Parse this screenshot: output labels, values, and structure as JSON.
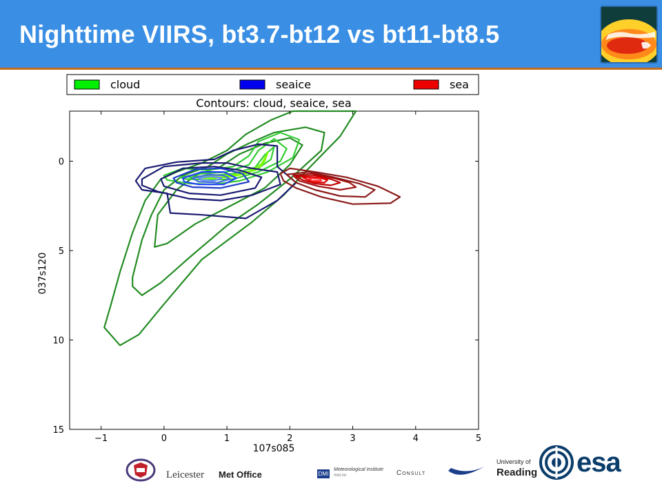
{
  "slide": {
    "title": "Nighttime VIIRS, bt3.7-bt12 vs bt11-bt8.5"
  },
  "colors": {
    "header_bg": "#3a8fe4",
    "header_border": "#c46a1e",
    "cloud": "#00ee00",
    "seaice": "#0000ee",
    "sea": "#ee0000"
  },
  "icons": {
    "header_logo": "globe-sst-map-icon",
    "esa_logo": "esa-swirl-icon",
    "edinburgh_logo": "university-crest-icon"
  },
  "chart_data": {
    "type": "contour",
    "title": "Contours: cloud, seaice, sea",
    "xlabel": "107s085",
    "ylabel": "037s120",
    "xlim": [
      -1.5,
      5
    ],
    "ylim": [
      15,
      -2.8
    ],
    "y_inverted": true,
    "grid": false,
    "legend_position": "top, outside",
    "xticks": [
      -1,
      0,
      1,
      2,
      3,
      4,
      5
    ],
    "xtick_labels": [
      "−1",
      "0",
      "1",
      "2",
      "3",
      "4",
      "5"
    ],
    "yticks": [
      0,
      5,
      10,
      15
    ],
    "ytick_labels": [
      "0",
      "5",
      "10",
      "15"
    ],
    "series": [
      {
        "name": "cloud",
        "legend_color": "#00ee00",
        "contours": [
          {
            "color": "#228b22",
            "points": [
              [
                -0.85,
                8.1
              ],
              [
                -0.7,
                6.2
              ],
              [
                -0.5,
                4.0
              ],
              [
                -0.3,
                2.2
              ],
              [
                -0.05,
                1.0
              ],
              [
                0.2,
                0.6
              ],
              [
                0.6,
                0.1
              ],
              [
                1.0,
                -0.6
              ],
              [
                1.3,
                -1.5
              ],
              [
                1.7,
                -2.3
              ],
              [
                2.05,
                -2.8
              ],
              [
                3.05,
                -2.8
              ],
              [
                2.8,
                -1.4
              ],
              [
                2.3,
                0.4
              ],
              [
                1.9,
                1.9
              ],
              [
                1.4,
                3.4
              ],
              [
                0.6,
                5.5
              ],
              [
                -0.05,
                8.2
              ],
              [
                -0.4,
                9.7
              ],
              [
                -0.7,
                10.3
              ],
              [
                -0.95,
                9.3
              ]
            ]
          },
          {
            "color": "#228b22",
            "points": [
              [
                -0.5,
                6.5
              ],
              [
                -0.35,
                4.4
              ],
              [
                -0.2,
                3.0
              ],
              [
                0.0,
                1.6
              ],
              [
                0.3,
                0.8
              ],
              [
                0.7,
                0.3
              ],
              [
                1.0,
                -0.4
              ],
              [
                1.35,
                -1.0
              ],
              [
                1.75,
                -1.6
              ],
              [
                2.25,
                -1.9
              ],
              [
                2.55,
                -1.6
              ],
              [
                2.5,
                -0.6
              ],
              [
                2.0,
                1.0
              ],
              [
                1.5,
                2.4
              ],
              [
                1.0,
                3.6
              ],
              [
                0.4,
                5.4
              ],
              [
                -0.05,
                6.8
              ],
              [
                -0.35,
                7.5
              ],
              [
                -0.5,
                7.0
              ]
            ]
          },
          {
            "color": "#228b22",
            "points": [
              [
                -0.15,
                4.8
              ],
              [
                -0.1,
                3.0
              ],
              [
                0.2,
                1.6
              ],
              [
                0.5,
                0.8
              ],
              [
                0.9,
                0.3
              ],
              [
                1.2,
                -0.4
              ],
              [
                1.6,
                -1.0
              ],
              [
                2.0,
                -1.3
              ],
              [
                2.2,
                -0.9
              ],
              [
                2.0,
                0.2
              ],
              [
                1.6,
                1.5
              ],
              [
                1.0,
                2.6
              ],
              [
                0.5,
                3.5
              ],
              [
                0.05,
                4.6
              ]
            ]
          },
          {
            "color": "#32cd32",
            "points": [
              [
                0.0,
                0.8
              ],
              [
                0.3,
                0.4
              ],
              [
                0.7,
                0.5
              ],
              [
                1.1,
                0.3
              ],
              [
                1.35,
                -0.3
              ],
              [
                1.5,
                -1.1
              ],
              [
                1.85,
                -1.6
              ],
              [
                2.15,
                -1.2
              ],
              [
                2.05,
                -0.2
              ],
              [
                1.65,
                0.6
              ],
              [
                1.2,
                1.1
              ],
              [
                0.8,
                1.3
              ],
              [
                0.4,
                1.25
              ],
              [
                0.05,
                1.05
              ]
            ]
          },
          {
            "color": "#32cd32",
            "points": [
              [
                0.25,
                0.9
              ],
              [
                0.6,
                0.7
              ],
              [
                1.0,
                0.6
              ],
              [
                1.35,
                0.2
              ],
              [
                1.5,
                -0.6
              ],
              [
                1.75,
                -1.25
              ],
              [
                1.95,
                -0.7
              ],
              [
                1.85,
                0.0
              ],
              [
                1.5,
                0.6
              ],
              [
                1.1,
                1.0
              ],
              [
                0.7,
                1.05
              ],
              [
                0.35,
                1.0
              ]
            ]
          },
          {
            "color": "#32cd32",
            "points": [
              [
                0.4,
                0.9
              ],
              [
                0.75,
                0.8
              ],
              [
                1.1,
                0.7
              ],
              [
                1.45,
                0.35
              ],
              [
                1.6,
                -0.35
              ],
              [
                1.75,
                -0.8
              ],
              [
                1.7,
                -0.1
              ],
              [
                1.45,
                0.5
              ],
              [
                1.1,
                0.85
              ],
              [
                0.75,
                0.95
              ]
            ]
          },
          {
            "color": "#7cfc00",
            "points": [
              [
                0.55,
                0.9
              ],
              [
                0.85,
                0.82
              ],
              [
                1.15,
                0.75
              ],
              [
                1.5,
                0.45
              ],
              [
                1.6,
                0.0
              ],
              [
                1.65,
                -0.5
              ],
              [
                1.55,
                0.15
              ],
              [
                1.3,
                0.7
              ],
              [
                1.0,
                0.9
              ],
              [
                0.7,
                0.95
              ]
            ]
          }
        ]
      },
      {
        "name": "seaice",
        "legend_color": "#0000ee",
        "contours": [
          {
            "color": "#191970",
            "points": [
              [
                -0.45,
                1.1
              ],
              [
                -0.3,
                0.4
              ],
              [
                0.2,
                0.05
              ],
              [
                0.8,
                -0.1
              ],
              [
                1.1,
                -0.6
              ],
              [
                1.5,
                -0.95
              ],
              [
                1.8,
                -0.85
              ],
              [
                1.8,
                0.3
              ],
              [
                2.1,
                1.2
              ],
              [
                1.8,
                2.2
              ],
              [
                1.3,
                3.2
              ],
              [
                0.6,
                3.0
              ],
              [
                0.1,
                2.9
              ],
              [
                0.05,
                1.8
              ],
              [
                -0.35,
                1.6
              ]
            ]
          },
          {
            "color": "#191970",
            "points": [
              [
                -0.35,
                1.0
              ],
              [
                0.0,
                0.3
              ],
              [
                0.6,
                0.1
              ],
              [
                1.0,
                0.1
              ],
              [
                1.4,
                0.4
              ],
              [
                1.8,
                0.6
              ],
              [
                1.85,
                1.3
              ],
              [
                1.4,
                1.9
              ],
              [
                0.9,
                2.2
              ],
              [
                0.4,
                2.1
              ],
              [
                -0.1,
                1.7
              ],
              [
                -0.35,
                1.35
              ]
            ]
          },
          {
            "color": "#191970",
            "points": [
              [
                -0.05,
                1.0
              ],
              [
                0.3,
                0.4
              ],
              [
                0.8,
                0.3
              ],
              [
                1.2,
                0.5
              ],
              [
                1.55,
                0.9
              ],
              [
                1.45,
                1.5
              ],
              [
                0.9,
                1.9
              ],
              [
                0.4,
                1.8
              ],
              [
                0.0,
                1.4
              ]
            ]
          },
          {
            "color": "#1e3cc8",
            "points": [
              [
                0.15,
                0.95
              ],
              [
                0.5,
                0.45
              ],
              [
                0.9,
                0.4
              ],
              [
                1.25,
                0.7
              ],
              [
                1.35,
                1.15
              ],
              [
                0.9,
                1.5
              ],
              [
                0.45,
                1.45
              ],
              [
                0.2,
                1.2
              ]
            ]
          },
          {
            "color": "#2040ff",
            "points": [
              [
                0.3,
                0.95
              ],
              [
                0.6,
                0.6
              ],
              [
                0.95,
                0.6
              ],
              [
                1.15,
                0.95
              ],
              [
                0.95,
                1.3
              ],
              [
                0.55,
                1.3
              ],
              [
                0.32,
                1.15
              ]
            ]
          },
          {
            "color": "#4169e1",
            "points": [
              [
                0.45,
                0.95
              ],
              [
                0.7,
                0.75
              ],
              [
                0.95,
                0.8
              ],
              [
                1.05,
                1.0
              ],
              [
                0.85,
                1.2
              ],
              [
                0.55,
                1.15
              ]
            ]
          },
          {
            "color": "#6a8cff",
            "points": [
              [
                0.55,
                0.95
              ],
              [
                0.75,
                0.85
              ],
              [
                0.92,
                0.95
              ],
              [
                0.8,
                1.1
              ],
              [
                0.6,
                1.07
              ]
            ]
          }
        ]
      },
      {
        "name": "sea",
        "legend_color": "#ee0000",
        "contours": [
          {
            "color": "#8b1a1a",
            "points": [
              [
                1.85,
                0.7
              ],
              [
                2.0,
                0.4
              ],
              [
                2.4,
                0.6
              ],
              [
                2.9,
                0.9
              ],
              [
                3.4,
                1.4
              ],
              [
                3.75,
                2.0
              ],
              [
                3.6,
                2.35
              ],
              [
                3.0,
                2.4
              ],
              [
                2.5,
                2.0
              ],
              [
                2.1,
                1.5
              ],
              [
                1.9,
                1.1
              ]
            ]
          },
          {
            "color": "#8b1a1a",
            "points": [
              [
                1.95,
                0.75
              ],
              [
                2.3,
                0.6
              ],
              [
                2.7,
                0.9
              ],
              [
                3.1,
                1.25
              ],
              [
                3.35,
                1.6
              ],
              [
                3.2,
                2.0
              ],
              [
                2.8,
                1.95
              ],
              [
                2.4,
                1.6
              ],
              [
                2.1,
                1.2
              ]
            ]
          },
          {
            "color": "#a01010",
            "points": [
              [
                2.05,
                0.8
              ],
              [
                2.35,
                0.7
              ],
              [
                2.7,
                0.95
              ],
              [
                2.95,
                1.2
              ],
              [
                3.05,
                1.45
              ],
              [
                2.8,
                1.6
              ],
              [
                2.45,
                1.4
              ],
              [
                2.15,
                1.1
              ]
            ]
          },
          {
            "color": "#c00000",
            "points": [
              [
                2.1,
                0.85
              ],
              [
                2.4,
                0.8
              ],
              [
                2.65,
                1.0
              ],
              [
                2.8,
                1.2
              ],
              [
                2.65,
                1.35
              ],
              [
                2.4,
                1.25
              ],
              [
                2.2,
                1.05
              ]
            ]
          },
          {
            "color": "#e00000",
            "points": [
              [
                2.2,
                0.9
              ],
              [
                2.45,
                0.9
              ],
              [
                2.6,
                1.05
              ],
              [
                2.55,
                1.2
              ],
              [
                2.35,
                1.15
              ]
            ]
          },
          {
            "color": "#ff3030",
            "points": [
              [
                2.3,
                0.95
              ],
              [
                2.48,
                0.98
              ],
              [
                2.5,
                1.08
              ],
              [
                2.35,
                1.1
              ]
            ]
          }
        ]
      }
    ]
  },
  "footer": {
    "partners": [
      "Leicester",
      "Met Office",
      "Meteorological Institute",
      "met.no",
      "Consult",
      "University of",
      "Reading",
      "esa"
    ],
    "dmi_badge": "DMI"
  }
}
